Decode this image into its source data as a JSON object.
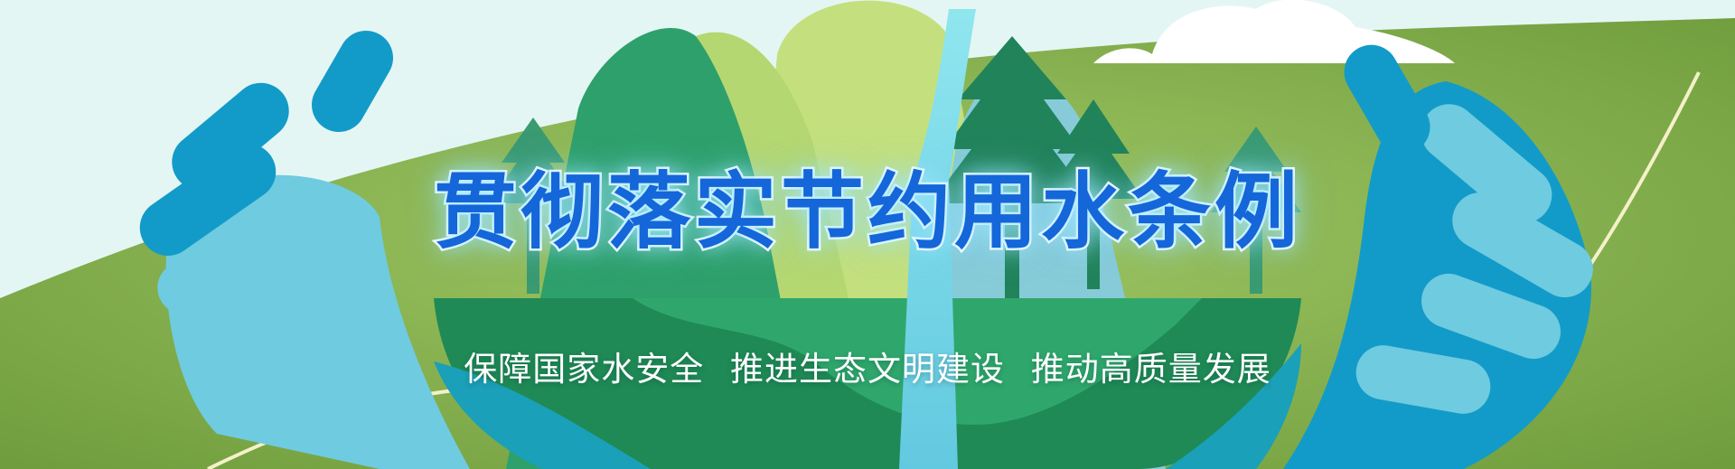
{
  "banner": {
    "title": "贯彻落实节约用水条例",
    "slogans": [
      "保障国家水安全",
      "推进生态文明建设",
      "推动高质量发展"
    ]
  },
  "colors": {
    "grass": "#7fae4a",
    "sky": "#e4f6f4",
    "earth_green": "#1f8a55",
    "hand_light": "#6fcbe0",
    "hand_dark": "#129bc8",
    "title_fill": "#1466d9",
    "waterfall": "#7fdcea"
  }
}
